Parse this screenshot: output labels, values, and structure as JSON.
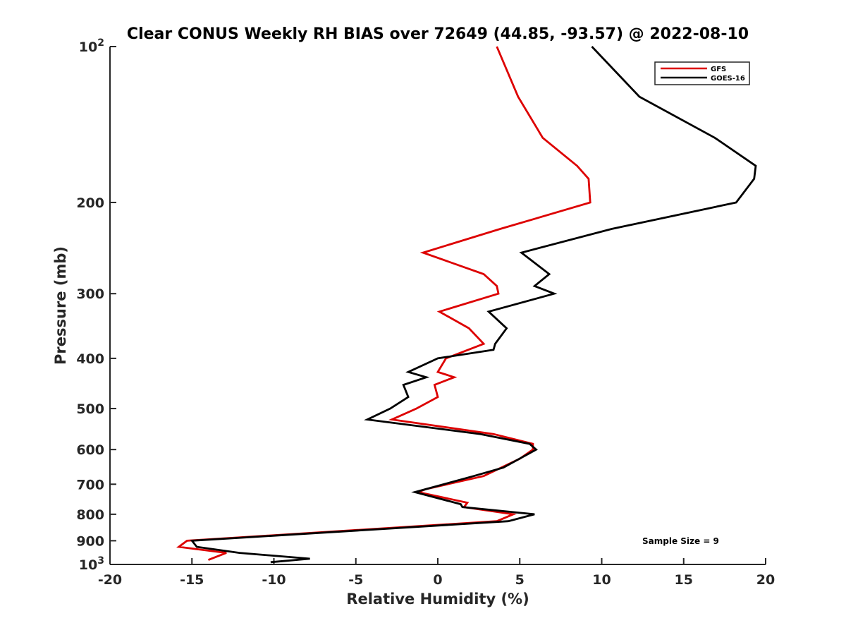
{
  "chart_data": {
    "type": "line",
    "title": "Clear CONUS Weekly RH BIAS over 72649 (44.85, -93.57) @ 2022-08-10",
    "xlabel": "Relative Humidity (%)",
    "ylabel": "Pressure (mb)",
    "xlim": [
      -20,
      20
    ],
    "ylim": [
      100,
      1000
    ],
    "y_scale": "log",
    "y_reversed": true,
    "x_ticks": [
      -20,
      -15,
      -10,
      -5,
      0,
      5,
      10,
      15,
      20
    ],
    "x_tick_labels": [
      "-20",
      "-15",
      "-10",
      "-5",
      "0",
      "5",
      "10",
      "15",
      "20"
    ],
    "y_ticks": [
      100,
      200,
      300,
      400,
      500,
      600,
      700,
      800,
      900,
      1000
    ],
    "y_tick_labels": [
      {
        "base": "10",
        "sup": "2"
      },
      {
        "base": "200",
        "sup": ""
      },
      {
        "base": "300",
        "sup": ""
      },
      {
        "base": "400",
        "sup": ""
      },
      {
        "base": "500",
        "sup": ""
      },
      {
        "base": "600",
        "sup": ""
      },
      {
        "base": "700",
        "sup": ""
      },
      {
        "base": "800",
        "sup": ""
      },
      {
        "base": "900",
        "sup": ""
      },
      {
        "base": "10",
        "sup": "3"
      }
    ],
    "grid": false,
    "legend_position": "top-right",
    "annotation": "Sample Size = 9",
    "series": [
      {
        "name": "GFS",
        "color": "#dd0000",
        "points": [
          [
            3.6,
            100
          ],
          [
            4.9,
            125
          ],
          [
            6.4,
            150
          ],
          [
            8.5,
            170
          ],
          [
            9.2,
            180
          ],
          [
            9.3,
            200
          ],
          [
            3.8,
            225
          ],
          [
            -0.9,
            250
          ],
          [
            2.8,
            275
          ],
          [
            3.6,
            290
          ],
          [
            3.7,
            300
          ],
          [
            0.1,
            325
          ],
          [
            1.9,
            350
          ],
          [
            2.8,
            375
          ],
          [
            0.5,
            400
          ],
          [
            0,
            425
          ],
          [
            1.0,
            435
          ],
          [
            -0.2,
            450
          ],
          [
            0,
            475
          ],
          [
            -1.3,
            500
          ],
          [
            -2.8,
            525
          ],
          [
            3.4,
            560
          ],
          [
            5.8,
            585
          ],
          [
            5.8,
            600
          ],
          [
            5.0,
            625
          ],
          [
            2.8,
            675
          ],
          [
            -0.7,
            715
          ],
          [
            -1.2,
            725
          ],
          [
            1.8,
            760
          ],
          [
            1.6,
            775
          ],
          [
            4.6,
            800
          ],
          [
            3.6,
            825
          ],
          [
            -15.3,
            900
          ],
          [
            -15.8,
            925
          ],
          [
            -12.9,
            950
          ],
          [
            -14.0,
            980
          ]
        ]
      },
      {
        "name": "GOES-16",
        "color": "#000000",
        "points": [
          [
            9.4,
            100
          ],
          [
            12.3,
            125
          ],
          [
            16.9,
            150
          ],
          [
            19.4,
            170
          ],
          [
            19.3,
            180
          ],
          [
            18.2,
            200
          ],
          [
            10.6,
            225
          ],
          [
            5.1,
            250
          ],
          [
            6.8,
            275
          ],
          [
            5.9,
            290
          ],
          [
            7.1,
            300
          ],
          [
            3.1,
            325
          ],
          [
            4.2,
            350
          ],
          [
            3.5,
            375
          ],
          [
            3.4,
            385
          ],
          [
            0,
            400
          ],
          [
            -1.8,
            425
          ],
          [
            -0.7,
            435
          ],
          [
            -2.1,
            450
          ],
          [
            -1.8,
            475
          ],
          [
            -2.9,
            500
          ],
          [
            -4.3,
            525
          ],
          [
            2.6,
            560
          ],
          [
            5.6,
            585
          ],
          [
            6.0,
            600
          ],
          [
            4.0,
            650
          ],
          [
            2.2,
            675
          ],
          [
            -1.4,
            725
          ],
          [
            1.4,
            765
          ],
          [
            1.5,
            775
          ],
          [
            5.9,
            800
          ],
          [
            4.3,
            825
          ],
          [
            -15.0,
            900
          ],
          [
            -14.7,
            925
          ],
          [
            -12.1,
            950
          ],
          [
            -7.8,
            975
          ],
          [
            -10.2,
            990
          ]
        ]
      }
    ]
  }
}
